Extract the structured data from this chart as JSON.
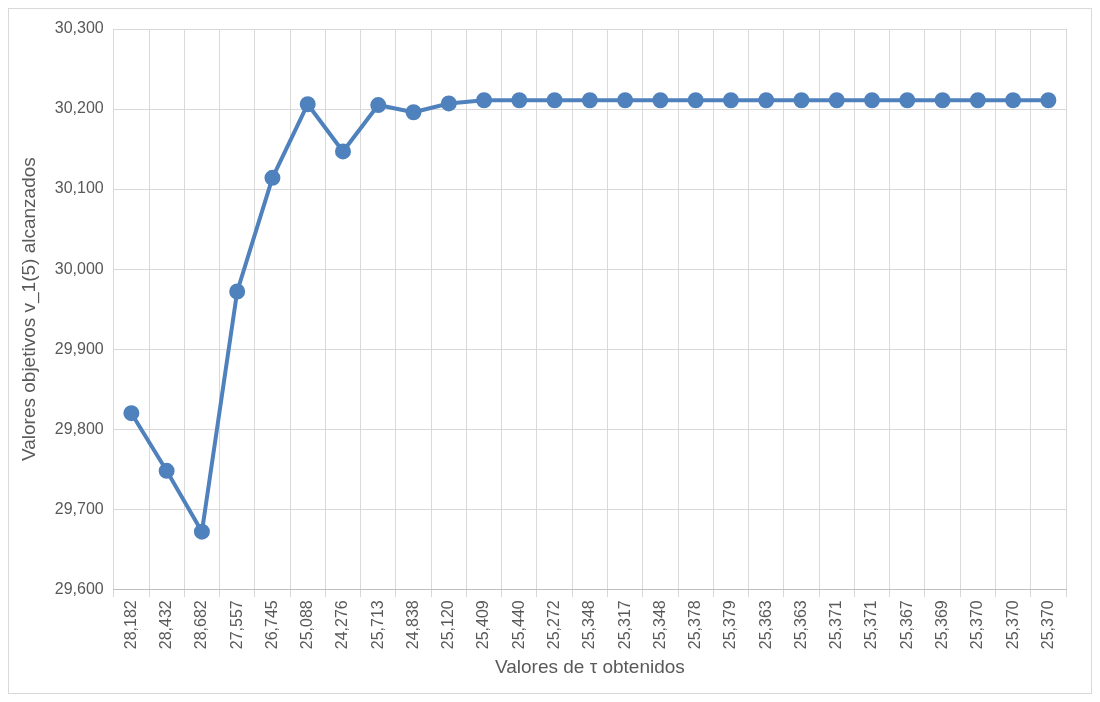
{
  "chart_data": {
    "type": "line",
    "xlabel": "Valores de τ obtenidos",
    "ylabel": "Valores objetivos v_1(5) alcanzados",
    "categories": [
      "28,182",
      "28,432",
      "28,682",
      "27,557",
      "26,745",
      "25,088",
      "24,276",
      "25,713",
      "24,838",
      "25,120",
      "25,409",
      "25,440",
      "25,272",
      "25,348",
      "25,317",
      "25,348",
      "25,378",
      "25,379",
      "25,363",
      "25,363",
      "25,371",
      "25,371",
      "25,367",
      "25,369",
      "25,370",
      "25,370",
      "25,370"
    ],
    "series": [
      {
        "color": "#4f81bd",
        "values": [
          29820,
          29748,
          29672,
          29972,
          30114,
          30206,
          30147,
          30205,
          30196,
          30207,
          30211,
          30211,
          30211,
          30211,
          30211,
          30211,
          30211,
          30211,
          30211,
          30211,
          30211,
          30211,
          30211,
          30211,
          30211,
          30211,
          30211
        ]
      }
    ],
    "ylim": [
      29600,
      30300
    ],
    "yticks": [
      {
        "value": 29600,
        "label": "29,600"
      },
      {
        "value": 29700,
        "label": "29,700"
      },
      {
        "value": 29800,
        "label": "29,800"
      },
      {
        "value": 29900,
        "label": "29,900"
      },
      {
        "value": 30000,
        "label": "30,000"
      },
      {
        "value": 30100,
        "label": "30,100"
      },
      {
        "value": 30200,
        "label": "30,200"
      },
      {
        "value": 30300,
        "label": "30,300"
      }
    ],
    "grid": true,
    "legend": false,
    "marker": "circle",
    "line_style": "solid"
  }
}
